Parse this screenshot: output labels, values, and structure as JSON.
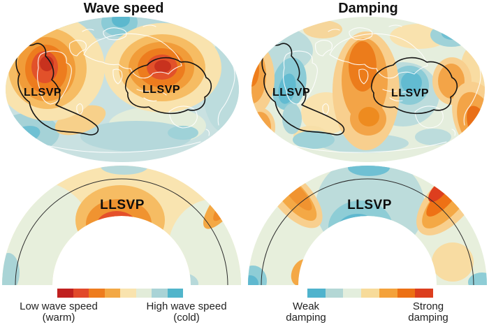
{
  "figure": {
    "title_left": "Wave speed",
    "title_right": "Damping",
    "llsvp_label": "LLSVP"
  },
  "legend_left": {
    "low_line1": "Low wave speed",
    "low_line2": "(warm)",
    "high_line1": "High wave speed",
    "high_line2": "(cold)",
    "colors": [
      "#c0201f",
      "#e2492a",
      "#ee7c1e",
      "#f3a845",
      "#f9e3ae",
      "#e2ecd9",
      "#a9d3d6",
      "#51b5cb"
    ]
  },
  "legend_right": {
    "low_line1": "Weak",
    "low_line2": "damping",
    "high_line1": "Strong",
    "high_line2": "damping",
    "colors": [
      "#4fb3cd",
      "#b3d7d5",
      "#e3eedd",
      "#f7db9a",
      "#f4a23b",
      "#ec7014",
      "#dc3e1e"
    ]
  }
}
